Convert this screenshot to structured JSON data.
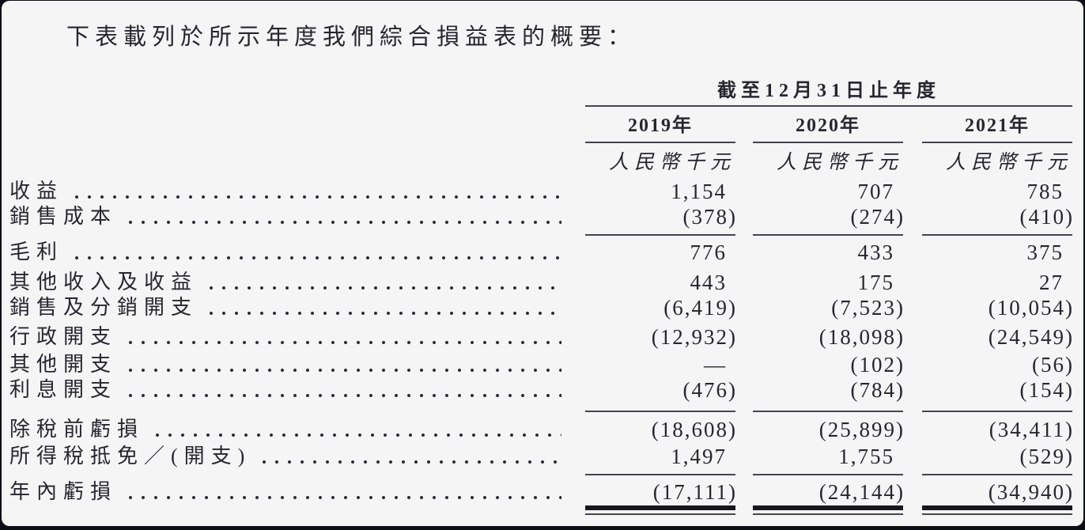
{
  "intro": "下表載列於所示年度我們綜合損益表的概要：",
  "table": {
    "period_header": "截至12月31日止年度",
    "columns": [
      "2019年",
      "2020年",
      "2021年"
    ],
    "unit_label": "人民幣千元",
    "rows": [
      {
        "label": "收益",
        "values": [
          "1,154",
          "707",
          "785"
        ]
      },
      {
        "label": "銷售成本",
        "values": [
          "(378)",
          "(274)",
          "(410)"
        ],
        "rule_after": "thin"
      },
      {
        "label": "毛利",
        "values": [
          "776",
          "433",
          "375"
        ]
      },
      {
        "label": "其他收入及收益",
        "values": [
          "443",
          "175",
          "27"
        ]
      },
      {
        "label": "銷售及分銷開支",
        "values": [
          "(6,419)",
          "(7,523)",
          "(10,054)"
        ]
      },
      {
        "label": "行政開支",
        "values": [
          "(12,932)",
          "(18,098)",
          "(24,549)"
        ]
      },
      {
        "label": "其他開支",
        "values": [
          "—",
          "(102)",
          "(56)"
        ]
      },
      {
        "label": "利息開支",
        "values": [
          "(476)",
          "(784)",
          "(154)"
        ],
        "rule_after": "thin"
      },
      {
        "label": "除稅前虧損",
        "values": [
          "(18,608)",
          "(25,899)",
          "(34,411)"
        ]
      },
      {
        "label": "所得稅抵免／(開支)",
        "values": [
          "1,497",
          "1,755",
          "(529)"
        ],
        "rule_after": "thin"
      },
      {
        "label": "年內虧損",
        "values": [
          "(17,111)",
          "(24,144)",
          "(34,940)"
        ],
        "rule_after": "total"
      }
    ]
  },
  "colors": {
    "text": "#26262f",
    "rule": "#45454f",
    "bar": "#16161d",
    "paper": "#f5f5f6",
    "frame": "#0d0d15"
  }
}
